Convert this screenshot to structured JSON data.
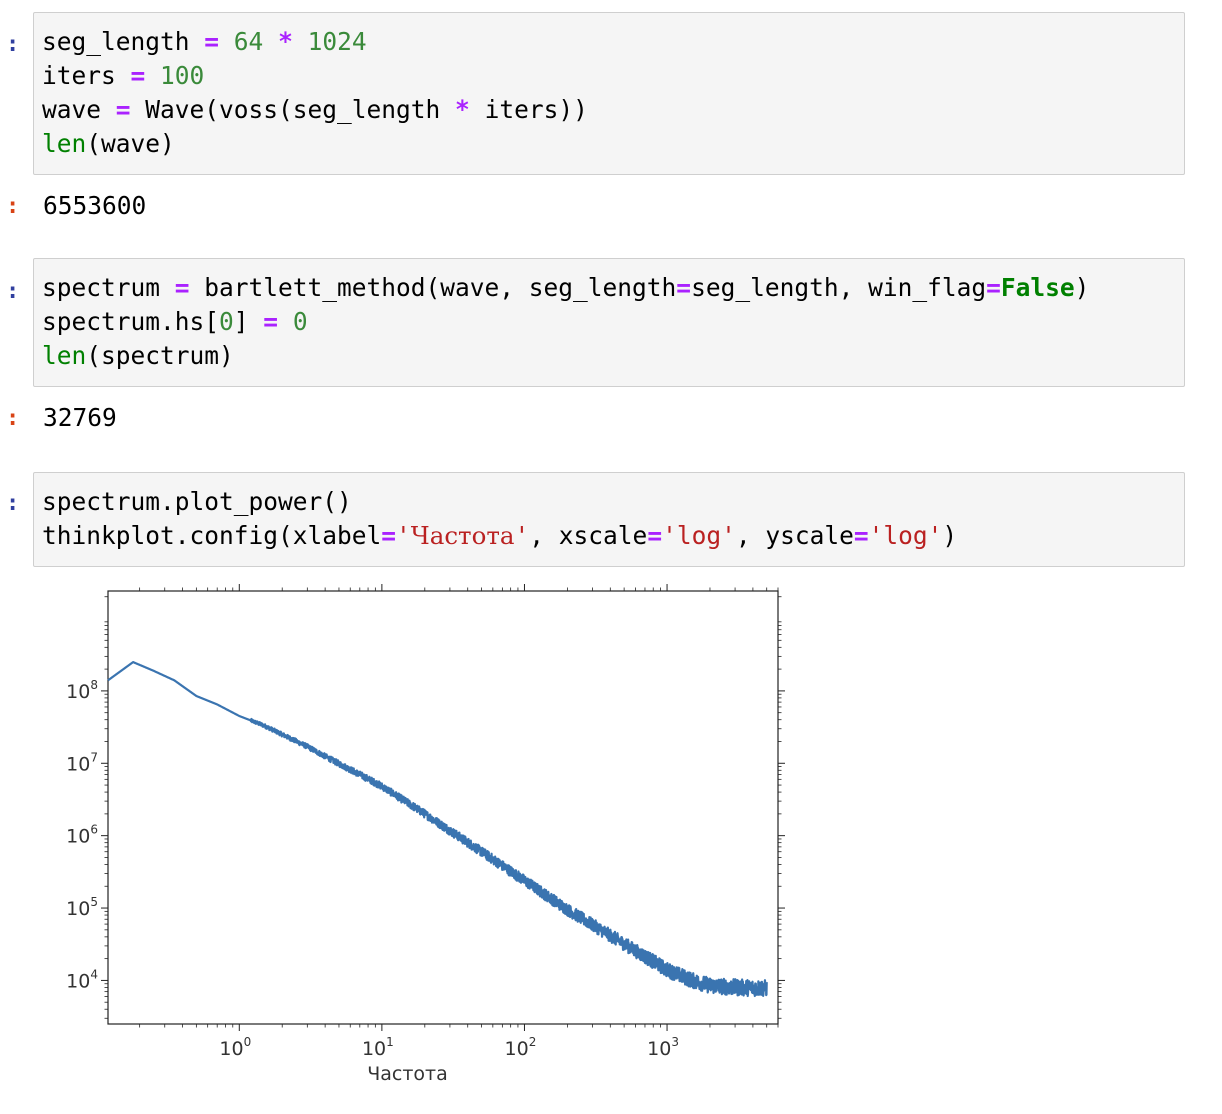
{
  "cells": [
    {
      "input_prompt": ":",
      "lines": [
        [
          [
            "seg_length ",
            ""
          ],
          [
            "=",
            "op"
          ],
          [
            " ",
            ""
          ],
          [
            "64",
            "num"
          ],
          [
            " ",
            ""
          ],
          [
            "*",
            "op"
          ],
          [
            " ",
            ""
          ],
          [
            "1024",
            "num"
          ]
        ],
        [
          [
            "iters ",
            ""
          ],
          [
            "=",
            "op"
          ],
          [
            " ",
            ""
          ],
          [
            "100",
            "num"
          ]
        ],
        [
          [
            "wave ",
            ""
          ],
          [
            "=",
            "op"
          ],
          [
            " Wave(voss(seg_length ",
            ""
          ],
          [
            "*",
            "op"
          ],
          [
            " iters))",
            ""
          ]
        ],
        [
          [
            "len",
            "bi"
          ],
          [
            "(wave)",
            ""
          ]
        ]
      ],
      "output_prompt": ":",
      "output": "6553600"
    },
    {
      "input_prompt": ":",
      "lines": [
        [
          [
            "spectrum ",
            ""
          ],
          [
            "=",
            "op"
          ],
          [
            " bartlett_method(wave, seg_length",
            ""
          ],
          [
            "=",
            "op"
          ],
          [
            "seg_length, win_flag",
            ""
          ],
          [
            "=",
            "op"
          ],
          [
            "False",
            "kw"
          ],
          [
            ")",
            ""
          ]
        ],
        [
          [
            "spectrum.hs[",
            ""
          ],
          [
            "0",
            "num"
          ],
          [
            "] ",
            ""
          ],
          [
            "=",
            "op"
          ],
          [
            " ",
            ""
          ],
          [
            "0",
            "num"
          ]
        ],
        [
          [
            "len",
            "bi"
          ],
          [
            "(spectrum)",
            ""
          ]
        ]
      ],
      "output_prompt": ":",
      "output": "32769"
    },
    {
      "input_prompt": ":",
      "lines": [
        [
          [
            "spectrum.plot_power()",
            ""
          ]
        ],
        [
          [
            "thinkplot.config(xlabel",
            ""
          ],
          [
            "=",
            "op"
          ],
          [
            "'",
            "str"
          ],
          [
            "Частота",
            "strcyr"
          ],
          [
            "'",
            "str"
          ],
          [
            ", xscale",
            ""
          ],
          [
            "=",
            "op"
          ],
          [
            "'log'",
            "str"
          ],
          [
            ", yscale",
            ""
          ],
          [
            "=",
            "op"
          ],
          [
            "'log'",
            "str"
          ],
          [
            ")",
            ""
          ]
        ]
      ]
    }
  ],
  "chart_data": {
    "type": "line",
    "xlabel": "Частота",
    "ylabel": "",
    "xscale": "log",
    "yscale": "log",
    "xlim": [
      0.12,
      6000
    ],
    "ylim": [
      2500,
      2400000000
    ],
    "xticks": [
      {
        "label": "10",
        "exp": "0",
        "value": 1
      },
      {
        "label": "10",
        "exp": "1",
        "value": 10
      },
      {
        "label": "10",
        "exp": "2",
        "value": 100
      },
      {
        "label": "10",
        "exp": "3",
        "value": 1000
      }
    ],
    "yticks": [
      {
        "label": "10",
        "exp": "4",
        "value": 10000
      },
      {
        "label": "10",
        "exp": "5",
        "value": 100000
      },
      {
        "label": "10",
        "exp": "6",
        "value": 1000000
      },
      {
        "label": "10",
        "exp": "7",
        "value": 10000000
      },
      {
        "label": "10",
        "exp": "8",
        "value": 100000000
      }
    ],
    "series": [
      {
        "color": "#3a74b0",
        "x": [
          0.12,
          0.18,
          0.25,
          0.35,
          0.5,
          0.7,
          1.0,
          1.5,
          2.0,
          3.0,
          4.5,
          7,
          10,
          20,
          50,
          100,
          200,
          500,
          1000,
          1500,
          2000,
          3000,
          5000
        ],
        "y": [
          140000000,
          250000000,
          190000000,
          140000000,
          85000000,
          65000000,
          45000000,
          33000000,
          25000000,
          17000000,
          11000000,
          7000000,
          4800000,
          2000000,
          600000,
          240000,
          95000,
          32000,
          14000,
          10000,
          8500,
          8000,
          7800
        ]
      }
    ]
  }
}
